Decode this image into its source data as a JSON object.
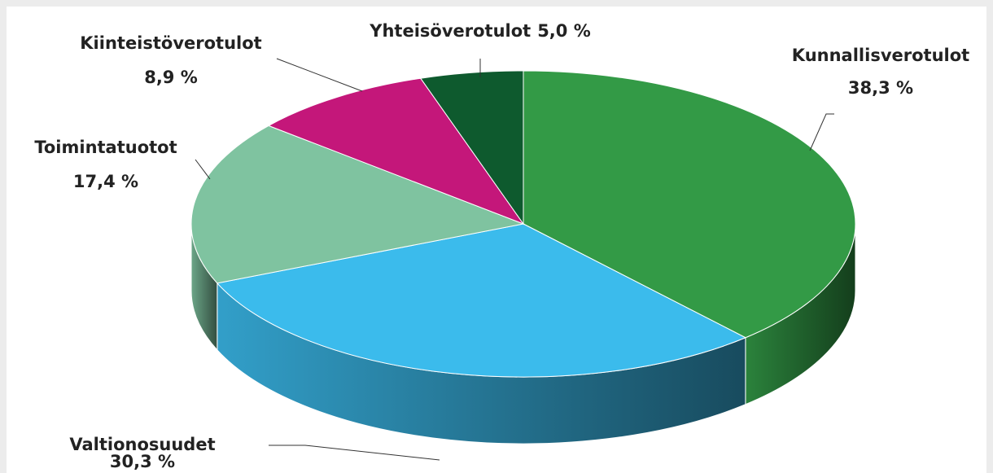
{
  "chart_data": {
    "type": "pie3d",
    "categories": [
      "Kunnallisverotulot",
      "Valtionosuudet",
      "Toimintatuotot",
      "Kiinteistöverotulot",
      "Yhteisöverotulot"
    ],
    "values": [
      38.3,
      30.3,
      17.4,
      8.9,
      5.0
    ],
    "value_labels": [
      "38,3 %",
      "30,3 %",
      "17,4 %",
      "8,9 %",
      "5,0 %"
    ],
    "colors": [
      "#339a46",
      "#3bbbec",
      "#7fc3a0",
      "#c4177a",
      "#0e5a2e"
    ]
  }
}
